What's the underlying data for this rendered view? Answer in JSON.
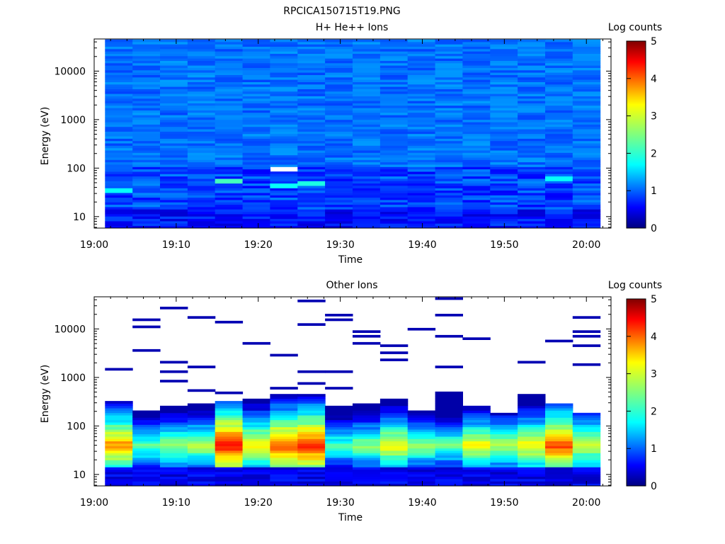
{
  "figure_title": "RPCICA150715T19.PNG",
  "chart_data": [
    {
      "type": "heatmap",
      "title": "H+ He++ Ions",
      "xlabel": "Time",
      "ylabel": "Energy (eV)",
      "x_ticks": [
        "19:00",
        "19:10",
        "19:20",
        "19:30",
        "19:40",
        "19:50",
        "20:00"
      ],
      "y_ticks": [
        "10",
        "100",
        "1000",
        "10000"
      ],
      "y_scale": "log",
      "xlim": [
        "19:00",
        "20:03"
      ],
      "ylim": [
        5.8,
        46000
      ],
      "data_time_range": [
        "19:03",
        "20:00"
      ],
      "time_bins": 18,
      "colorbar": {
        "label": "Log counts",
        "range": [
          0,
          5
        ],
        "ticks": [
          "0",
          "1",
          "2",
          "3",
          "4",
          "5"
        ]
      },
      "profile_note": "background ~1.0-1.4 log counts at all energies",
      "highlights": [
        {
          "time": "19:04",
          "energy_eV": 35,
          "value": 1.9
        },
        {
          "time": "19:17",
          "energy_eV": 55,
          "value": 2.2
        },
        {
          "time": "19:24",
          "energy_eV": 45,
          "value": 1.9
        },
        {
          "time": "19:27",
          "energy_eV": 50,
          "value": 2.0
        },
        {
          "time": "19:56",
          "energy_eV": 60,
          "value": 1.9
        },
        {
          "time": "19:24",
          "energy_eV": 100,
          "value": "empty"
        }
      ]
    },
    {
      "type": "heatmap",
      "title": "Other Ions",
      "xlabel": "Time",
      "ylabel": "Energy (eV)",
      "x_ticks": [
        "19:00",
        "19:10",
        "19:20",
        "19:30",
        "19:40",
        "19:50",
        "20:00"
      ],
      "y_ticks": [
        "10",
        "100",
        "1000",
        "10000"
      ],
      "y_scale": "log",
      "xlim": [
        "19:00",
        "20:03"
      ],
      "ylim": [
        5.8,
        46000
      ],
      "data_time_range": [
        "19:03",
        "20:00"
      ],
      "time_bins": 18,
      "colorbar": {
        "label": "Log counts",
        "range": [
          0,
          5
        ],
        "ticks": [
          "0",
          "1",
          "2",
          "3",
          "4",
          "5"
        ]
      },
      "peak_energy_eV": [
        30,
        50
      ],
      "column_top_energy_eV": [
        330,
        220,
        270,
        300,
        310,
        350,
        450,
        480,
        270,
        290,
        360,
        210,
        500,
        260,
        190,
        440,
        280,
        190
      ],
      "column_peak_log_counts": [
        3.7,
        2.4,
        2.7,
        2.8,
        4.3,
        3.3,
        4.0,
        4.2,
        2.3,
        2.6,
        3.2,
        2.6,
        2.4,
        3.1,
        2.8,
        3.2,
        4.0,
        3.0
      ],
      "sparse_high_energy": "isolated ~0.3 log count bins between 400 and 40000 eV"
    }
  ]
}
